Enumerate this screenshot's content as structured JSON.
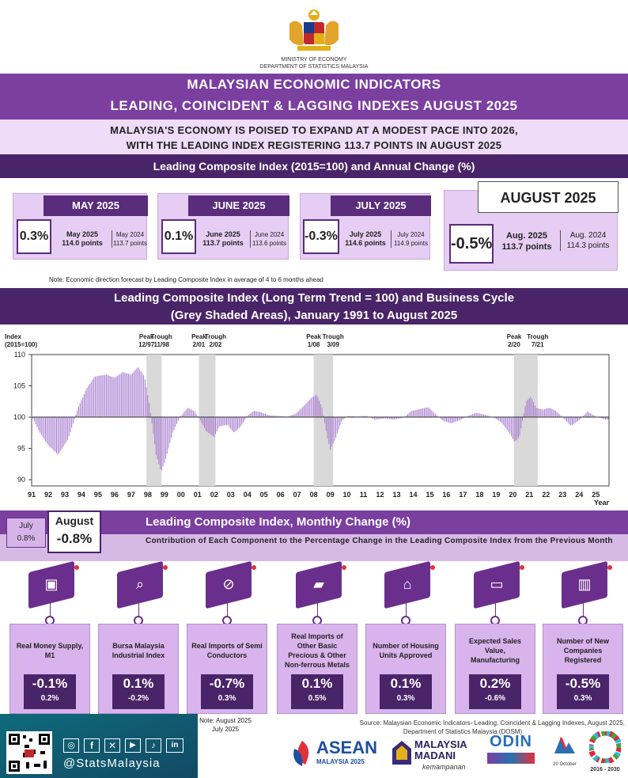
{
  "header": {
    "ministry": "MINISTRY OF ECONOMY",
    "department": "DEPARTMENT OF STATISTICS MALAYSIA",
    "title_line1": "MALAYSIAN ECONOMIC INDICATORS",
    "title_line2": "LEADING, COINCIDENT & LAGGING INDEXES AUGUST 2025",
    "headline_line1": "MALAYSIA'S ECONOMY IS POISED TO EXPAND AT A MODEST PACE INTO 2026,",
    "headline_line2": "WITH THE LEADING INDEX REGISTERING 113.7 POINTS IN AUGUST 2025"
  },
  "section1_title": "Leading Composite Index (2015=100) and Annual Change (%)",
  "months": [
    {
      "label": "MAY 2025",
      "pct": "0.3%",
      "cur_label": "May 2025",
      "cur_value": "114.0 points",
      "prev_label": "May 2024",
      "prev_value": "113.7 points"
    },
    {
      "label": "JUNE 2025",
      "pct": "0.1%",
      "cur_label": "June 2025",
      "cur_value": "113.7 points",
      "prev_label": "June 2024",
      "prev_value": "113.6 points"
    },
    {
      "label": "JULY 2025",
      "pct": "-0.3%",
      "cur_label": "July 2025",
      "cur_value": "114.6 points",
      "prev_label": "July 2024",
      "prev_value": "114.9 points"
    },
    {
      "label": "AUGUST 2025",
      "pct": "-0.5%",
      "cur_label": "Aug. 2025",
      "cur_value": "113.7 points",
      "prev_label": "Aug. 2024",
      "prev_value": "114.3 points"
    }
  ],
  "note": "Note: Economic direction forecast by Leading Composite Index in average of 4 to 6 months ahead",
  "section2_title_line1": "Leading Composite Index (Long Term Trend = 100) and Business Cycle",
  "section2_title_line2": "(Grey Shaded Areas), January 1991 to August 2025",
  "chart_data": {
    "type": "bar",
    "ylabel": "Index (2015=100)",
    "xlabel": "Year",
    "ylim": [
      89,
      110
    ],
    "yticks": [
      90,
      95,
      100,
      105,
      110
    ],
    "baseline": 100,
    "xlim": [
      1991,
      2025.8
    ],
    "x_tick_labels": [
      "91",
      "92",
      "93",
      "94",
      "95",
      "96",
      "97",
      "98",
      "99",
      "00",
      "01",
      "02",
      "03",
      "04",
      "05",
      "06",
      "07",
      "08",
      "09",
      "10",
      "11",
      "12",
      "13",
      "14",
      "15",
      "16",
      "17",
      "18",
      "19",
      "20",
      "21",
      "22",
      "23",
      "24",
      "25"
    ],
    "shaded_periods": [
      {
        "start": 1997.92,
        "end": 1998.83
      },
      {
        "start": 2001.08,
        "end": 2002.08
      },
      {
        "start": 2008.0,
        "end": 2009.17
      },
      {
        "start": 2020.08,
        "end": 2021.5
      }
    ],
    "annotations": [
      {
        "x": 1997.92,
        "label": "Peak",
        "date": "12/97"
      },
      {
        "x": 1998.83,
        "label": "Trough",
        "date": "11/98"
      },
      {
        "x": 2001.08,
        "label": "Peak",
        "date": "2/01"
      },
      {
        "x": 2002.08,
        "label": "Trough",
        "date": "2/02"
      },
      {
        "x": 2008.0,
        "label": "Peak",
        "date": "1/08"
      },
      {
        "x": 2009.17,
        "label": "Trough",
        "date": "3/09"
      },
      {
        "x": 2020.08,
        "label": "Peak",
        "date": "2/20"
      },
      {
        "x": 2021.5,
        "label": "Trough",
        "date": "7/21"
      }
    ],
    "series_keypoints": [
      [
        1991.0,
        100.2
      ],
      [
        1991.5,
        97.5
      ],
      [
        1992.0,
        95.5
      ],
      [
        1992.6,
        94.0
      ],
      [
        1993.2,
        96.5
      ],
      [
        1993.8,
        101.5
      ],
      [
        1994.3,
        104.5
      ],
      [
        1994.8,
        106.5
      ],
      [
        1995.5,
        106.8
      ],
      [
        1996.0,
        106.3
      ],
      [
        1996.5,
        107.2
      ],
      [
        1997.0,
        106.8
      ],
      [
        1997.4,
        108.0
      ],
      [
        1997.8,
        106.5
      ],
      [
        1998.1,
        102.0
      ],
      [
        1998.5,
        94.0
      ],
      [
        1998.8,
        91.2
      ],
      [
        1999.1,
        93.5
      ],
      [
        1999.5,
        97.5
      ],
      [
        1999.9,
        99.8
      ],
      [
        2000.4,
        101.5
      ],
      [
        2000.8,
        101.0
      ],
      [
        2001.1,
        99.8
      ],
      [
        2001.5,
        97.8
      ],
      [
        2002.0,
        96.8
      ],
      [
        2002.3,
        98.5
      ],
      [
        2002.8,
        98.8
      ],
      [
        2003.2,
        97.5
      ],
      [
        2003.6,
        98.5
      ],
      [
        2004.0,
        100.2
      ],
      [
        2004.4,
        101.0
      ],
      [
        2004.8,
        100.8
      ],
      [
        2005.3,
        100.3
      ],
      [
        2005.8,
        100.2
      ],
      [
        2006.4,
        100.1
      ],
      [
        2006.9,
        100.5
      ],
      [
        2007.4,
        101.8
      ],
      [
        2007.9,
        103.2
      ],
      [
        2008.2,
        103.6
      ],
      [
        2008.5,
        101.5
      ],
      [
        2008.8,
        97.0
      ],
      [
        2009.0,
        94.8
      ],
      [
        2009.3,
        96.5
      ],
      [
        2009.7,
        99.5
      ],
      [
        2010.1,
        100.2
      ],
      [
        2010.6,
        100.1
      ],
      [
        2011.2,
        100.2
      ],
      [
        2011.7,
        99.6
      ],
      [
        2012.3,
        99.8
      ],
      [
        2012.8,
        99.6
      ],
      [
        2013.4,
        99.9
      ],
      [
        2013.9,
        101.0
      ],
      [
        2014.4,
        101.3
      ],
      [
        2014.9,
        101.6
      ],
      [
        2015.3,
        100.6
      ],
      [
        2015.8,
        99.4
      ],
      [
        2016.3,
        99.0
      ],
      [
        2016.8,
        99.5
      ],
      [
        2017.3,
        100.2
      ],
      [
        2017.8,
        100.7
      ],
      [
        2018.3,
        100.4
      ],
      [
        2018.8,
        100.0
      ],
      [
        2019.3,
        99.2
      ],
      [
        2019.8,
        97.5
      ],
      [
        2020.1,
        96.0
      ],
      [
        2020.4,
        96.8
      ],
      [
        2020.8,
        102.5
      ],
      [
        2021.1,
        103.3
      ],
      [
        2021.4,
        101.5
      ],
      [
        2021.8,
        101.2
      ],
      [
        2022.2,
        101.5
      ],
      [
        2022.6,
        101.0
      ],
      [
        2023.0,
        100.0
      ],
      [
        2023.5,
        98.6
      ],
      [
        2024.0,
        99.5
      ],
      [
        2024.5,
        100.9
      ],
      [
        2025.0,
        100.1
      ],
      [
        2025.6,
        99.6
      ]
    ]
  },
  "monthly_change": {
    "title": "Leading Composite Index, Monthly Change (%)",
    "july_label": "July",
    "july_value": "0.8%",
    "aug_label": "August",
    "aug_value": "-0.8%",
    "subtitle": "Contribution of Each Component to the Percentage Change in the Leading Composite Index from the Previous Month"
  },
  "components": [
    {
      "name": "Real Money Supply, M1",
      "aug": "-0.1%",
      "jul": "0.2%",
      "icon": "wallet-icon"
    },
    {
      "name": "Bursa Malaysia Industrial Index",
      "aug": "0.1%",
      "jul": "-0.2%",
      "icon": "chart-magnifier-icon"
    },
    {
      "name": "Real Imports of Semi Conductors",
      "aug": "-0.7%",
      "jul": "0.3%",
      "icon": "chip-icon"
    },
    {
      "name": "Real Imports of Other Basic Precious & Other Non-ferrous Metals",
      "aug": "0.1%",
      "jul": "0.5%",
      "icon": "metal-bar-icon"
    },
    {
      "name": "Number of Housing Units Approved",
      "aug": "0.1%",
      "jul": "0.3%",
      "icon": "house-icon"
    },
    {
      "name": "Expected Sales Value, Manufacturing",
      "aug": "0.2%",
      "jul": "-0.6%",
      "icon": "presentation-icon"
    },
    {
      "name": "Number of New Companies Registered",
      "aug": "-0.5%",
      "jul": "0.3%",
      "icon": "buildings-icon"
    }
  ],
  "footer": {
    "note_line1": "Note: August 2025",
    "note_line2": "July 2025",
    "source_line1": "Source: Malaysian Economic Indicators- Leading, Coincident & Lagging Indexes, August 2025,",
    "source_line2": "Department of Statistics Malaysia (DOSM)",
    "handle": "@StatsMalaysia",
    "logo_asean": "ASEAN",
    "logo_asean_sub": "MALAYSIA 2025",
    "logo_madani": "MALAYSIA MADANI",
    "logo_madani_sub": "kemampanan",
    "logo_odin": "ODIN",
    "logo_20oct": "20 October",
    "logo_sdg": "2016 - 2030"
  },
  "colors": {
    "purple": "#7b3fa0",
    "dark_purple": "#4a2468",
    "lavender": "#e6cdf3",
    "bar": "#b58bd6"
  }
}
